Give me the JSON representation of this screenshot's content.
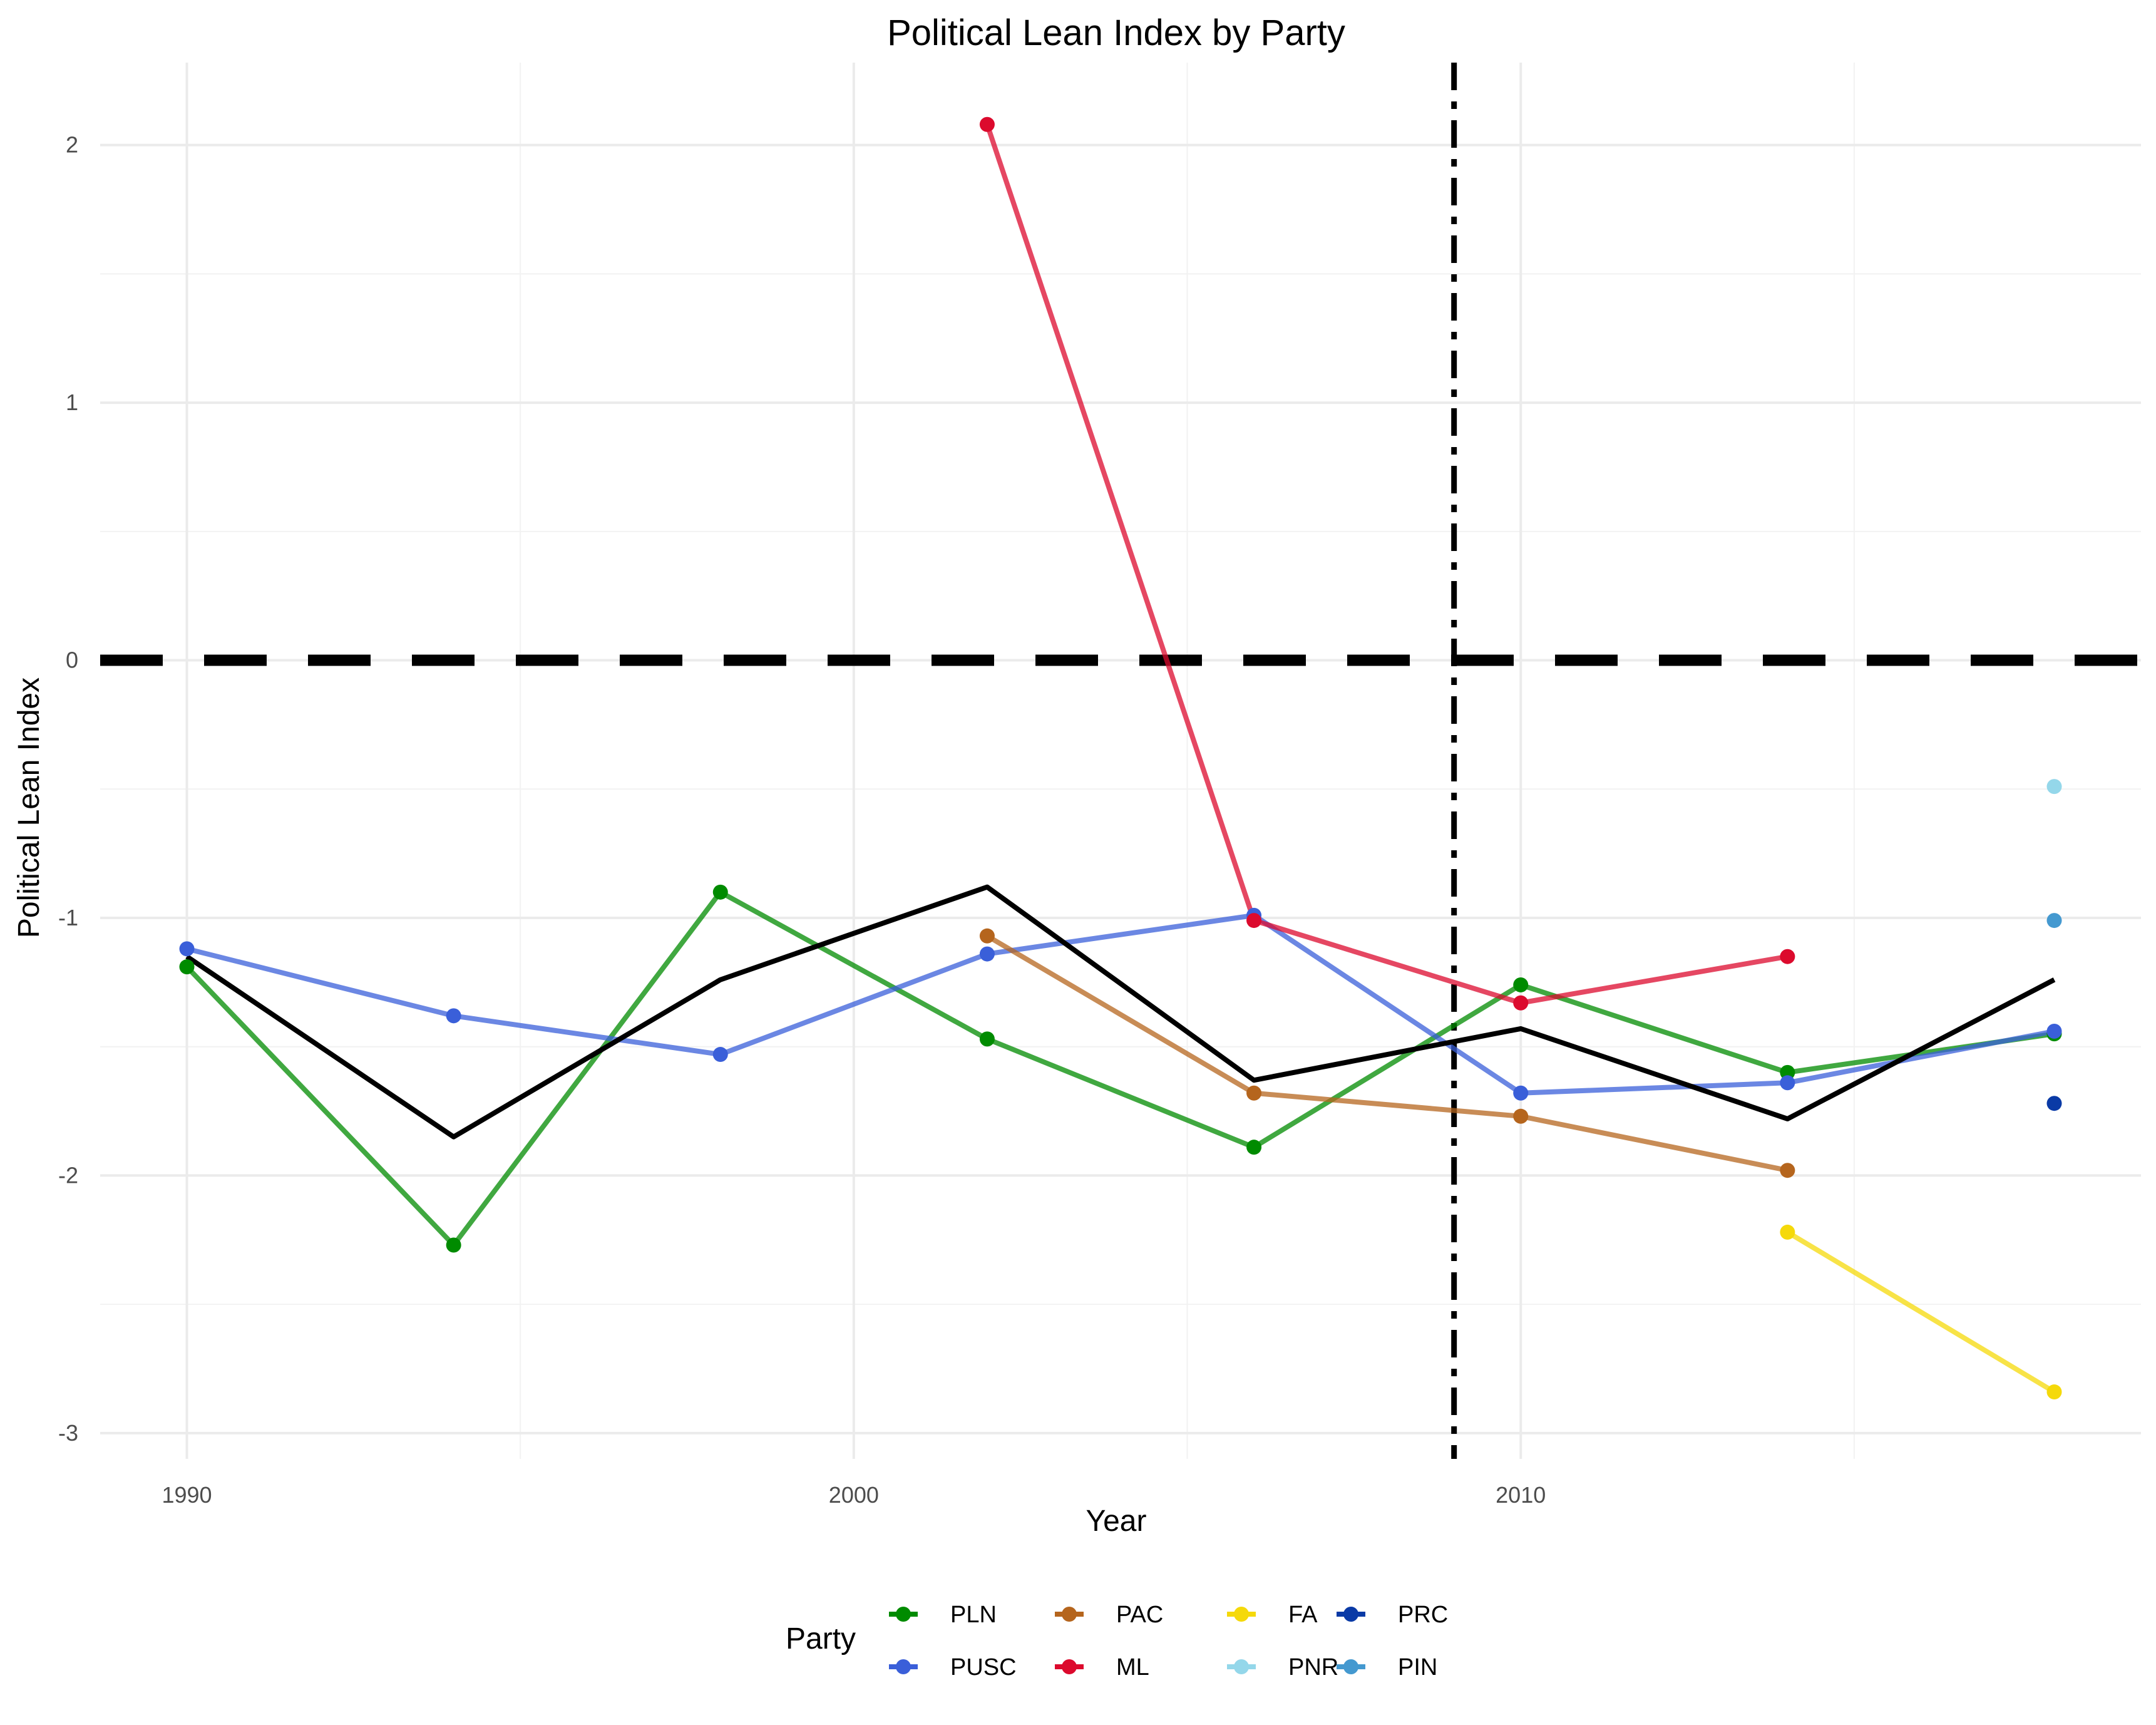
{
  "chart_data": {
    "type": "line",
    "title": "Political Lean Index by Party",
    "xlabel": "Year",
    "ylabel": "Political Lean Index",
    "xlim": [
      1988.7,
      2019.3
    ],
    "ylim": [
      -3.1,
      2.32
    ],
    "x_ticks": [
      1990,
      2000,
      2010
    ],
    "x_minor_ticks": [
      1995,
      2005,
      2015
    ],
    "y_ticks": [
      -3,
      -2,
      -1,
      0,
      1,
      2
    ],
    "y_minor_ticks": [
      -2.5,
      -1.5,
      -0.5,
      0.5,
      1.5
    ],
    "grid": true,
    "hline": {
      "y": 0,
      "style": "dashed",
      "color": "#000000"
    },
    "vline": {
      "x": 2009,
      "style": "dotdash",
      "color": "#000000"
    },
    "legend": {
      "title": "Party",
      "position": "bottom"
    },
    "series": [
      {
        "name": "PLN",
        "color": "#008B00",
        "x": [
          1990,
          1994,
          1998,
          2002,
          2006,
          2010,
          2014,
          2018
        ],
        "y": [
          -1.19,
          -2.27,
          -0.9,
          -1.47,
          -1.89,
          -1.26,
          -1.6,
          -1.45
        ]
      },
      {
        "name": "PUSC",
        "color": "#3A5FD9",
        "x": [
          1990,
          1994,
          1998,
          2002,
          2006,
          2010,
          2014,
          2018
        ],
        "y": [
          -1.12,
          -1.38,
          -1.53,
          -1.14,
          -0.99,
          -1.68,
          -1.64,
          -1.44
        ]
      },
      {
        "name": "PAC",
        "color": "#B5651D",
        "x": [
          2002,
          2006,
          2010,
          2014
        ],
        "y": [
          -1.07,
          -1.68,
          -1.77,
          -1.98
        ]
      },
      {
        "name": "ML",
        "color": "#DC0A2D",
        "x": [
          2002,
          2006,
          2010,
          2014
        ],
        "y": [
          2.08,
          -1.01,
          -1.33,
          -1.15
        ]
      },
      {
        "name": "FA",
        "color": "#F5D90A",
        "x": [
          2014,
          2018
        ],
        "y": [
          -2.22,
          -2.84
        ]
      },
      {
        "name": "PNR",
        "color": "#94D7EA",
        "x": [
          2018
        ],
        "y": [
          -0.49
        ]
      },
      {
        "name": "PRC",
        "color": "#0A3AA6",
        "x": [
          2018
        ],
        "y": [
          -1.72
        ]
      },
      {
        "name": "PIN",
        "color": "#4499D0",
        "x": [
          2018
        ],
        "y": [
          -1.01
        ]
      }
    ],
    "average_line": {
      "color": "#000000",
      "x": [
        1990,
        1994,
        1998,
        2002,
        2006,
        2010,
        2014,
        2018
      ],
      "y": [
        -1.15,
        -1.85,
        -1.24,
        -0.88,
        -1.63,
        -1.43,
        -1.78,
        -1.24
      ]
    }
  }
}
